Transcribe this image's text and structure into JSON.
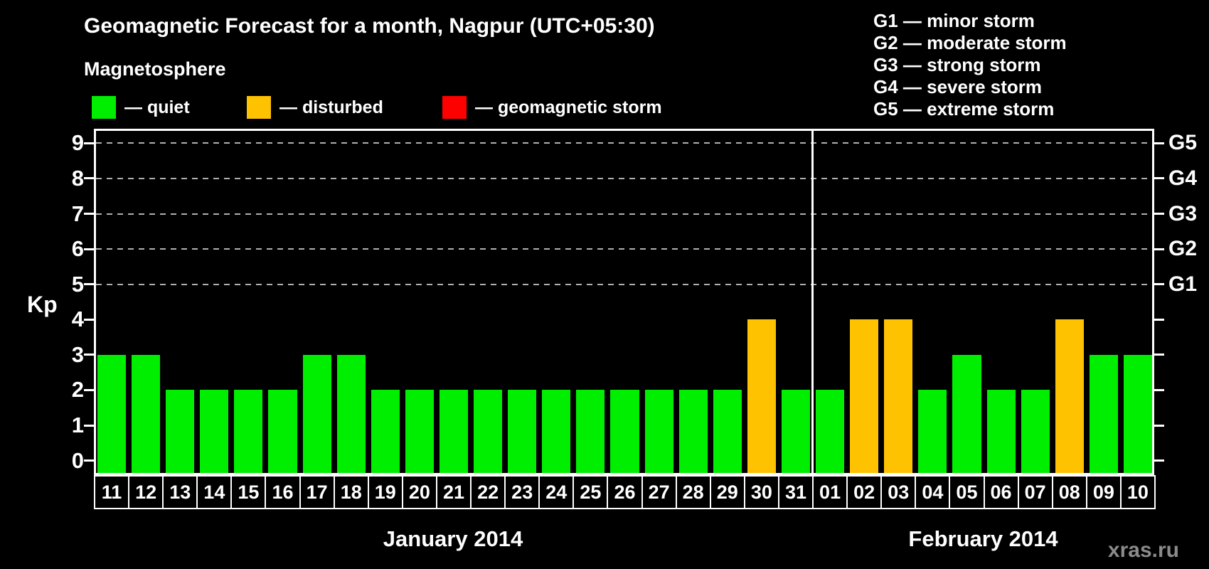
{
  "title": "Geomagnetic Forecast for a month, Nagpur (UTC+05:30)",
  "subtitle": "Magnetosphere",
  "legend": [
    {
      "name": "quiet",
      "label": "— quiet",
      "color": "#00ee00"
    },
    {
      "name": "disturbed",
      "label": "— disturbed",
      "color": "#ffc200"
    },
    {
      "name": "storm",
      "label": "— geomagnetic storm",
      "color": "#ff0000"
    }
  ],
  "g_scale_legend": [
    "G1 — minor storm",
    "G2 — moderate storm",
    "G3 — strong storm",
    "G4 — severe storm",
    "G5 — extreme storm"
  ],
  "watermark": "xras.ru",
  "chart_data": {
    "type": "bar",
    "ylabel": "Kp",
    "ylim": [
      -0.35,
      9.35
    ],
    "grid": "dashed horizontal at Kp 5-9",
    "gridlines": [
      5,
      6,
      7,
      8,
      9
    ],
    "y_ticks": [
      0,
      1,
      2,
      3,
      4,
      5,
      6,
      7,
      8,
      9
    ],
    "y_right_labels": [
      {
        "kp": 5,
        "label": "G1"
      },
      {
        "kp": 6,
        "label": "G2"
      },
      {
        "kp": 7,
        "label": "G3"
      },
      {
        "kp": 8,
        "label": "G4"
      },
      {
        "kp": 9,
        "label": "G5"
      }
    ],
    "months": [
      {
        "label": "January 2014",
        "days": 21
      },
      {
        "label": "February 2014",
        "days": 10
      }
    ],
    "categories": [
      "11",
      "12",
      "13",
      "14",
      "15",
      "16",
      "17",
      "18",
      "19",
      "20",
      "21",
      "22",
      "23",
      "24",
      "25",
      "26",
      "27",
      "28",
      "29",
      "30",
      "31",
      "01",
      "02",
      "03",
      "04",
      "05",
      "06",
      "07",
      "08",
      "09",
      "10"
    ],
    "values": [
      3,
      3,
      2,
      2,
      2,
      2,
      3,
      3,
      2,
      2,
      2,
      2,
      2,
      2,
      2,
      2,
      2,
      2,
      2,
      4,
      2,
      2,
      4,
      4,
      2,
      3,
      2,
      2,
      4,
      3,
      3
    ],
    "statuses": [
      "quiet",
      "quiet",
      "quiet",
      "quiet",
      "quiet",
      "quiet",
      "quiet",
      "quiet",
      "quiet",
      "quiet",
      "quiet",
      "quiet",
      "quiet",
      "quiet",
      "quiet",
      "quiet",
      "quiet",
      "quiet",
      "quiet",
      "disturbed",
      "quiet",
      "quiet",
      "disturbed",
      "disturbed",
      "quiet",
      "quiet",
      "quiet",
      "quiet",
      "disturbed",
      "quiet",
      "quiet"
    ],
    "status_colors": {
      "quiet": "#00ee00",
      "disturbed": "#ffc200",
      "storm": "#ff0000"
    }
  }
}
